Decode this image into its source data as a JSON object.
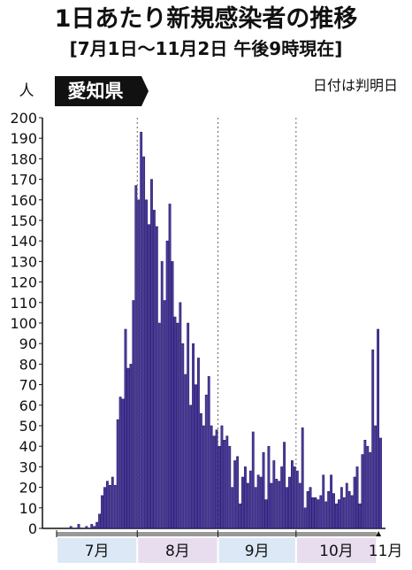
{
  "chart_data": {
    "type": "bar",
    "title": "1日あたり新規感染者の推移",
    "subtitle": "[7月1日〜11月2日 午後9時現在]",
    "note": "日付は判明日",
    "region": "愛知県",
    "y_unit": "人",
    "ylim": [
      0,
      200
    ],
    "yticks": [
      0,
      10,
      20,
      30,
      40,
      50,
      60,
      70,
      80,
      90,
      100,
      110,
      120,
      130,
      140,
      150,
      160,
      170,
      180,
      190,
      200
    ],
    "color": "#4b3a9c",
    "months": [
      {
        "label": "7月",
        "values": [
          0,
          0,
          0,
          0,
          0,
          1,
          0,
          0,
          2,
          0,
          0,
          1,
          0,
          2,
          1,
          3,
          7,
          16,
          20,
          23,
          21,
          25,
          21,
          53,
          64,
          63,
          97,
          78,
          80,
          111,
          167
        ]
      },
      {
        "label": "8月",
        "values": [
          160,
          193,
          181,
          160,
          148,
          170,
          155,
          147,
          100,
          130,
          111,
          140,
          158,
          130,
          103,
          100,
          110,
          90,
          75,
          100,
          60,
          90,
          70,
          83,
          56,
          50,
          65,
          74,
          50,
          45,
          48
        ]
      },
      {
        "label": "9月",
        "values": [
          40,
          50,
          43,
          45,
          40,
          20,
          33,
          35,
          12,
          25,
          30,
          22,
          28,
          47,
          20,
          26,
          25,
          37,
          14,
          40,
          22,
          33,
          24,
          23,
          30,
          42,
          20,
          25,
          33,
          30
        ]
      },
      {
        "label": "10月",
        "values": [
          28,
          22,
          49,
          10,
          18,
          20,
          15,
          15,
          14,
          16,
          26,
          13,
          18,
          26,
          17,
          12,
          14,
          20,
          15,
          22,
          18,
          16,
          25,
          30,
          12,
          36,
          43,
          40,
          37,
          87,
          50
        ]
      },
      {
        "label": "11月",
        "values": [
          97,
          44
        ]
      }
    ]
  }
}
